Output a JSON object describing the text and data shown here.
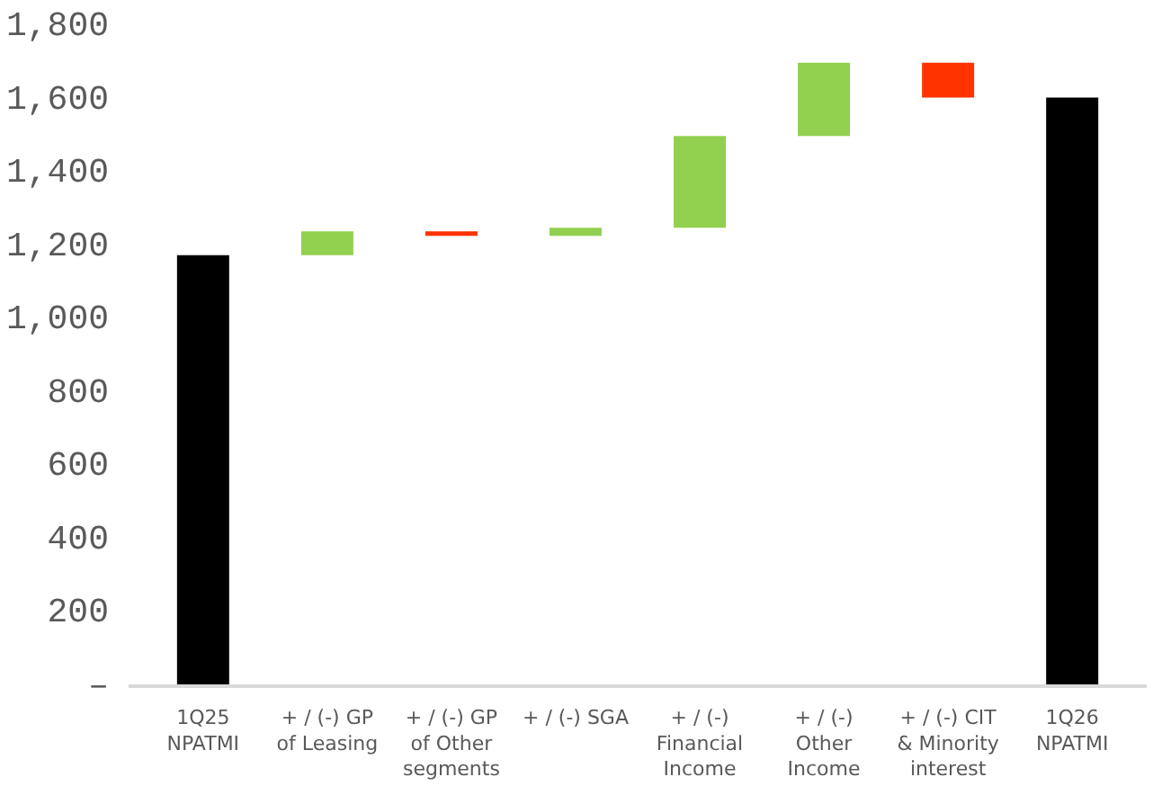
{
  "chart_data": {
    "type": "bar",
    "categories": [
      "1Q25\nNPATMI",
      "+ / (-) GP\nof Leasing",
      "+ / (-) GP\nof Other\nsegments",
      "+ / (-) SGA",
      "+ / (-)\nFinancial\nIncome",
      "+ / (-)\nOther\nIncome",
      "+ / (-) CIT\n& Minority\ninterest",
      "1Q26\nNPATMI"
    ],
    "values": [
      1175,
      65,
      -12,
      22,
      250,
      200,
      -95,
      1605
    ],
    "base": [
      0,
      1175,
      1240,
      1228,
      1250,
      1500,
      1700,
      0
    ],
    "colors": [
      "#000000",
      "#92d050",
      "#ff3300",
      "#92d050",
      "#92d050",
      "#92d050",
      "#ff3300",
      "#000000"
    ],
    "ylim": [
      0,
      1800
    ],
    "yticks": [
      {
        "value": 0,
        "label": "–"
      },
      {
        "value": 200,
        "label": "200"
      },
      {
        "value": 400,
        "label": "400"
      },
      {
        "value": 600,
        "label": "600"
      },
      {
        "value": 800,
        "label": "800"
      },
      {
        "value": 1000,
        "label": "1,000"
      },
      {
        "value": 1200,
        "label": "1,200"
      },
      {
        "value": 1400,
        "label": "1,400"
      },
      {
        "value": 1600,
        "label": "1,600"
      },
      {
        "value": 1800,
        "label": "1,800"
      }
    ],
    "grid": false
  }
}
